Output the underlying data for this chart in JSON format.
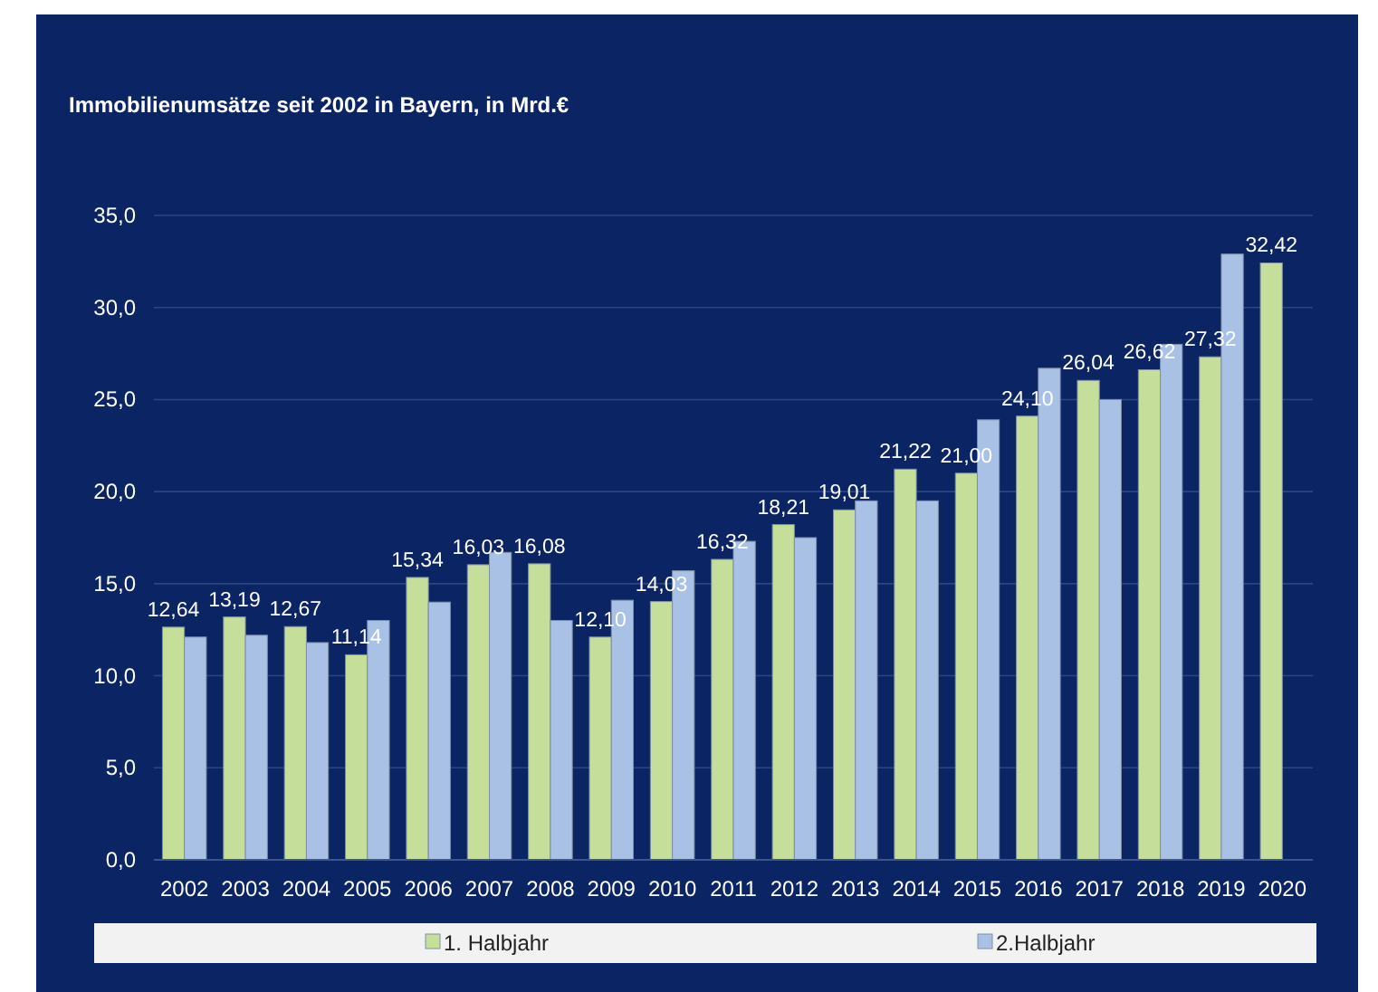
{
  "chart_data": {
    "type": "bar",
    "title": "Immobilienumsätze seit 2002 in Bayern, in Mrd.€",
    "categories": [
      "2002",
      "2003",
      "2004",
      "2005",
      "2006",
      "2007",
      "2008",
      "2009",
      "2010",
      "2011",
      "2012",
      "2013",
      "2014",
      "2015",
      "2016",
      "2017",
      "2018",
      "2019",
      "2020"
    ],
    "series": [
      {
        "name": "1. Halbjahr",
        "color": "#c5df9a",
        "values": [
          12.64,
          13.19,
          12.67,
          11.14,
          15.34,
          16.03,
          16.08,
          12.1,
          14.03,
          16.32,
          18.21,
          19.01,
          21.22,
          21.0,
          24.1,
          26.04,
          26.62,
          27.32,
          32.42
        ],
        "value_labels": [
          "12,64",
          "13,19",
          "12,67",
          "11,14",
          "15,34",
          "16,03",
          "16,08",
          "12,10",
          "14,03",
          "16,32",
          "18,21",
          "19,01",
          "21,22",
          "21,00",
          "24,10",
          "26,04",
          "26,62",
          "27,32",
          "32,42"
        ]
      },
      {
        "name": "2.Halbjahr",
        "color": "#a9c1e4",
        "values": [
          12.1,
          12.2,
          11.8,
          13.0,
          14.0,
          16.7,
          13.0,
          14.1,
          15.7,
          17.3,
          17.5,
          19.5,
          19.5,
          23.9,
          26.7,
          25.0,
          28.0,
          32.9,
          null
        ]
      }
    ],
    "ylim": [
      0,
      35
    ],
    "yticks": [
      {
        "value": 0,
        "label": "0,0"
      },
      {
        "value": 5,
        "label": "5,0"
      },
      {
        "value": 10,
        "label": "10,0"
      },
      {
        "value": 15,
        "label": "15,0"
      },
      {
        "value": 20,
        "label": "20,0"
      },
      {
        "value": 25,
        "label": "25,0"
      },
      {
        "value": 30,
        "label": "30,0"
      },
      {
        "value": 35,
        "label": "35,0"
      }
    ],
    "grid": "y",
    "legend": "bottom"
  }
}
